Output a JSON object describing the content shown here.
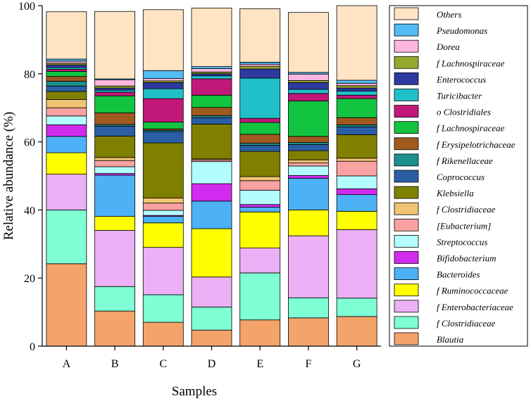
{
  "chart_data": {
    "type": "bar",
    "stacked": true,
    "title": "",
    "xlabel": "Samples",
    "ylabel": "Relative abundance (%)",
    "ylim": [
      0,
      100
    ],
    "yticks": [
      0,
      20,
      40,
      60,
      80,
      100
    ],
    "categories": [
      "A",
      "B",
      "C",
      "D",
      "E",
      "F",
      "G"
    ],
    "legend_position": "right",
    "series": [
      {
        "name": "Blautia",
        "color": "#F4A46A",
        "values": [
          24.2,
          10.3,
          7.0,
          4.7,
          7.7,
          8.3,
          8.7
        ]
      },
      {
        "name": "f Clostridiaceae",
        "color": "#7FFFD4",
        "values": [
          15.8,
          7.2,
          8.1,
          6.8,
          13.8,
          5.9,
          5.4
        ]
      },
      {
        "name": "f Enterobacteriaceae",
        "color": "#EBB0F5",
        "values": [
          10.5,
          16.5,
          13.9,
          8.8,
          7.3,
          18.2,
          20.1
        ]
      },
      {
        "name": "f Ruminococcaceae",
        "color": "#FFFF00",
        "values": [
          6.3,
          4.1,
          7.2,
          14.2,
          10.6,
          7.6,
          5.4
        ]
      },
      {
        "name": "Bacteroides",
        "color": "#4DB2F5",
        "values": [
          4.8,
          12.1,
          1.9,
          8.1,
          1.4,
          9.3,
          4.9
        ]
      },
      {
        "name": "Bifidobacterium",
        "color": "#D22BF0",
        "values": [
          3.4,
          0.5,
          0.3,
          5.1,
          0.8,
          0.8,
          1.7
        ]
      },
      {
        "name": "Streptococcus",
        "color": "#B3FDFF",
        "values": [
          2.6,
          2.0,
          1.5,
          6.5,
          4.2,
          2.8,
          3.8
        ]
      },
      {
        "name": "[Eubacterium]",
        "color": "#F9A2A2",
        "values": [
          2.4,
          1.8,
          2.1,
          0.5,
          2.8,
          0.9,
          4.3
        ]
      },
      {
        "name": "f Clostridiaceae",
        "color": "#F0C472",
        "values": [
          2.4,
          0.9,
          1.5,
          0.3,
          1.2,
          0.9,
          0.9
        ]
      },
      {
        "name": "Klebsiella",
        "color": "#808000",
        "values": [
          2.4,
          6.3,
          16.2,
          10.2,
          7.4,
          2.7,
          6.9
        ]
      },
      {
        "name": "Coprococcus",
        "color": "#2B5FA5",
        "values": [
          1.6,
          2.9,
          3.3,
          1.9,
          1.8,
          1.8,
          2.3
        ]
      },
      {
        "name": "f Rikenellaceae",
        "color": "#1D8F8F",
        "values": [
          1.4,
          0.5,
          0.4,
          0.6,
          0.6,
          0.6,
          0.6
        ]
      },
      {
        "name": "f Erysipelotrichaceae",
        "color": "#A05A20",
        "values": [
          1.4,
          3.4,
          0.4,
          2.4,
          2.6,
          1.8,
          2.1
        ]
      },
      {
        "name": "f Lachnospiraceae",
        "color": "#12C440",
        "values": [
          1.5,
          5.0,
          2.0,
          3.6,
          3.5,
          10.4,
          5.6
        ]
      },
      {
        "name": "o Clostridiales",
        "color": "#C2187A",
        "values": [
          0.6,
          1.1,
          6.9,
          4.8,
          1.2,
          2.2,
          1.0
        ]
      },
      {
        "name": "Turicibacter",
        "color": "#20C0C8",
        "values": [
          0.5,
          0.6,
          2.9,
          0.9,
          11.8,
          1.2,
          1.2
        ]
      },
      {
        "name": "Enterococcus",
        "color": "#2E3A9F",
        "values": [
          0.8,
          0.6,
          1.8,
          0.6,
          2.7,
          2.0,
          0.9
        ]
      },
      {
        "name": "f Lachnospiraceae",
        "color": "#97A82E",
        "values": [
          0.5,
          0.6,
          0.5,
          0.5,
          0.8,
          0.6,
          0.7
        ]
      },
      {
        "name": "Dorea",
        "color": "#FFB6E0",
        "values": [
          0.6,
          1.8,
          0.7,
          1.0,
          0.6,
          1.9,
          0.7
        ]
      },
      {
        "name": "Pseudomonas",
        "color": "#52BDF5",
        "values": [
          0.6,
          0.3,
          2.3,
          0.6,
          0.6,
          0.5,
          0.9
        ]
      },
      {
        "name": "Others",
        "color": "#FFE4C4",
        "values": [
          13.9,
          19.8,
          17.9,
          17.2,
          15.7,
          17.6,
          22.0
        ]
      }
    ]
  }
}
